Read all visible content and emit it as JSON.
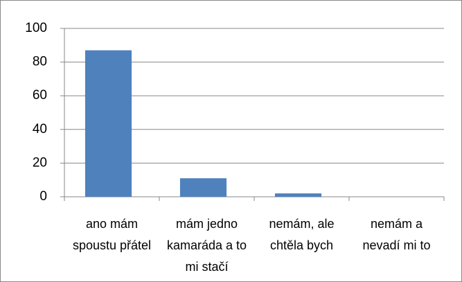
{
  "chart_data": {
    "type": "bar",
    "categories": [
      "ano mám spoustu přátel",
      "mám jedno kamaráda a to mi stačí",
      "nemám, ale chtěla bych",
      "nemám a nevadí mi to"
    ],
    "values": [
      87,
      11,
      2,
      0
    ],
    "color": "#4f81bd",
    "ylim": [
      0,
      100
    ],
    "yticks": [
      0,
      20,
      40,
      60,
      80,
      100
    ],
    "grid": true
  }
}
